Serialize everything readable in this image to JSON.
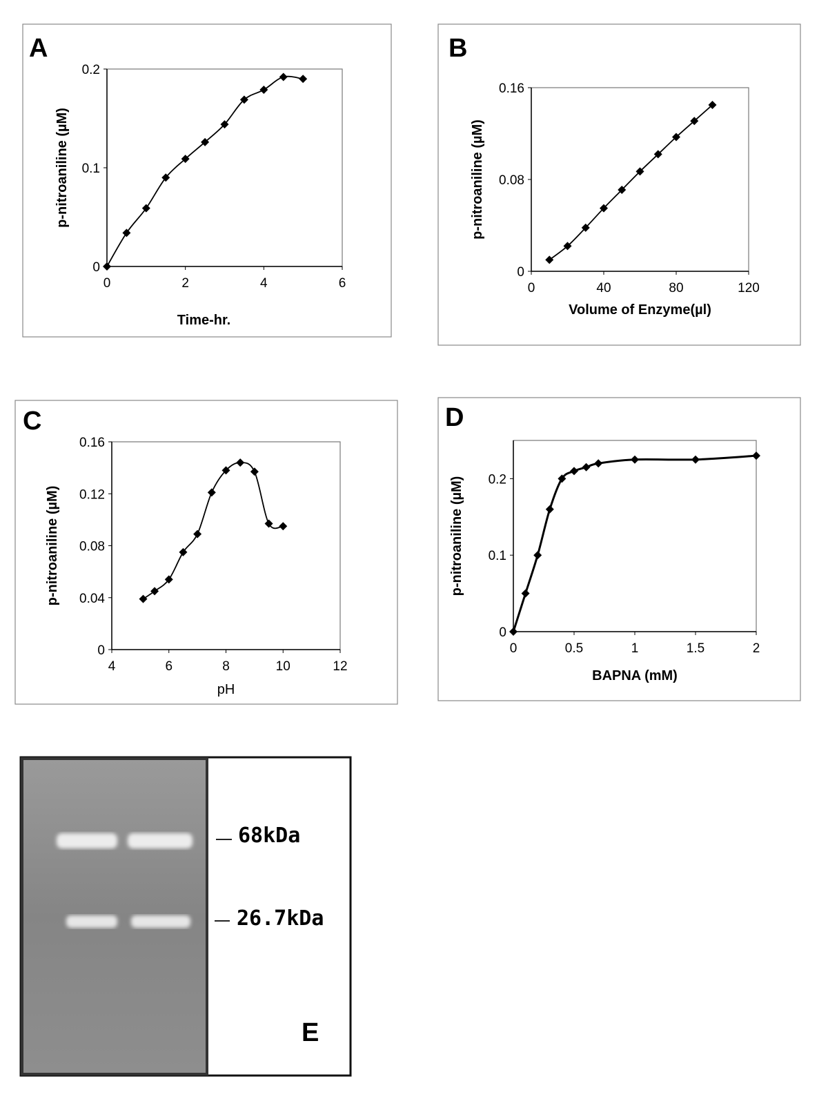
{
  "chart_data": [
    {
      "type": "line",
      "panel_label": "A",
      "x_label": "Time-hr.",
      "y_label": "p-nitroaniline (µM)",
      "x": [
        0,
        0.5,
        1,
        1.5,
        2,
        2.5,
        3,
        3.5,
        4,
        4.5,
        5
      ],
      "values": [
        0,
        0.034,
        0.059,
        0.09,
        0.109,
        0.126,
        0.144,
        0.169,
        0.179,
        0.192,
        0.19
      ],
      "xlim": [
        0,
        6
      ],
      "xticks": [
        0,
        2,
        4,
        6
      ],
      "ylim": [
        0,
        0.2
      ],
      "yticks": [
        0,
        0.1,
        0.2
      ],
      "color": "#000000",
      "smooth": true
    },
    {
      "type": "line",
      "panel_label": "B",
      "x_label": "Volume of Enzyme(µl)",
      "y_label": "p-nitroaniline (µM)",
      "x": [
        10,
        20,
        30,
        40,
        50,
        60,
        70,
        80,
        90,
        100
      ],
      "values": [
        0.01,
        0.022,
        0.038,
        0.055,
        0.071,
        0.087,
        0.102,
        0.117,
        0.131,
        0.145
      ],
      "xlim": [
        0,
        120
      ],
      "xticks": [
        0,
        40,
        80,
        120
      ],
      "ylim": [
        0,
        0.16
      ],
      "yticks": [
        0,
        0.08,
        0.16
      ],
      "color": "#000000",
      "smooth": true
    },
    {
      "type": "line",
      "panel_label": "C",
      "x_label": "pH",
      "y_label": "p-nitroaniline (µM)",
      "x": [
        5.1,
        5.5,
        6,
        6.5,
        7,
        7.5,
        8,
        8.5,
        9,
        9.5,
        10
      ],
      "values": [
        0.039,
        0.045,
        0.054,
        0.075,
        0.089,
        0.121,
        0.138,
        0.144,
        0.137,
        0.097,
        0.095
      ],
      "xlim": [
        4,
        12
      ],
      "xticks": [
        4,
        6,
        8,
        10,
        12
      ],
      "ylim": [
        0,
        0.16
      ],
      "yticks": [
        0,
        0.04,
        0.08,
        0.12,
        0.16
      ],
      "color": "#000000",
      "smooth": true
    },
    {
      "type": "line",
      "panel_label": "D",
      "x_label": "BAPNA (mM)",
      "y_label": "p-nitroaniline (µM)",
      "x": [
        0,
        0.1,
        0.2,
        0.3,
        0.4,
        0.5,
        0.6,
        0.7,
        1,
        1.5,
        2
      ],
      "values": [
        0,
        0.05,
        0.1,
        0.16,
        0.2,
        0.21,
        0.215,
        0.22,
        0.225,
        0.225,
        0.23
      ],
      "xlim": [
        0,
        2
      ],
      "xticks": [
        0,
        0.5,
        1,
        1.5,
        2
      ],
      "ylim": [
        0,
        0.25
      ],
      "yticks": [
        0,
        0.1,
        0.2
      ],
      "color": "#000000",
      "smooth": true
    }
  ],
  "gel": {
    "bands": [
      "68kDa",
      "26.7kDa"
    ],
    "panel_label": "E"
  }
}
